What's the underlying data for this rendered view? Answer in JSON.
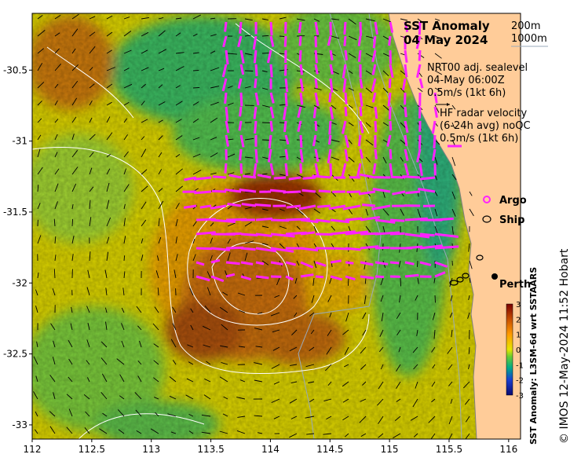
{
  "map": {
    "title": "SST Anomaly",
    "date": "04 May 2024",
    "isobath_labels": [
      "200m",
      "1000m"
    ],
    "sealevel_label_lines": [
      "NRT00 adj. sealevel",
      "04-May 06:00Z",
      "0.5m/s (1kt 6h)"
    ],
    "hf_label_lines": [
      "HF radar velocity",
      "(6-24h avg) noQC",
      "0.5m/s (1kt 6h)"
    ],
    "legend": {
      "argo": "Argo",
      "ship": "Ship"
    },
    "city_label": "Perth",
    "lon_ticks": [
      "112",
      "112.5",
      "113",
      "113.5",
      "114",
      "114.5",
      "115",
      "115.5",
      "116"
    ],
    "lat_ticks": [
      "-30.5",
      "-31",
      "-31.5",
      "-32",
      "-32.5",
      "-33"
    ],
    "lon_range": [
      112,
      116.1
    ],
    "lat_range": [
      -33.1,
      -30.1
    ],
    "colorbar": {
      "label": "SST Anomaly: L3SM-6d wrt SSTAARS",
      "ticks": [
        "3",
        "2",
        "1",
        "0",
        "-1",
        "-2",
        "-3"
      ],
      "range": [
        -3,
        3
      ]
    },
    "credit": "© IMOS 12-May-2024 11:52 Hobart",
    "colors": {
      "land": "#ffcc99",
      "hf_arrow": "#ff22ff",
      "vector": "#000000",
      "contour": "#ffffff",
      "isobath": "#99aabb"
    }
  }
}
